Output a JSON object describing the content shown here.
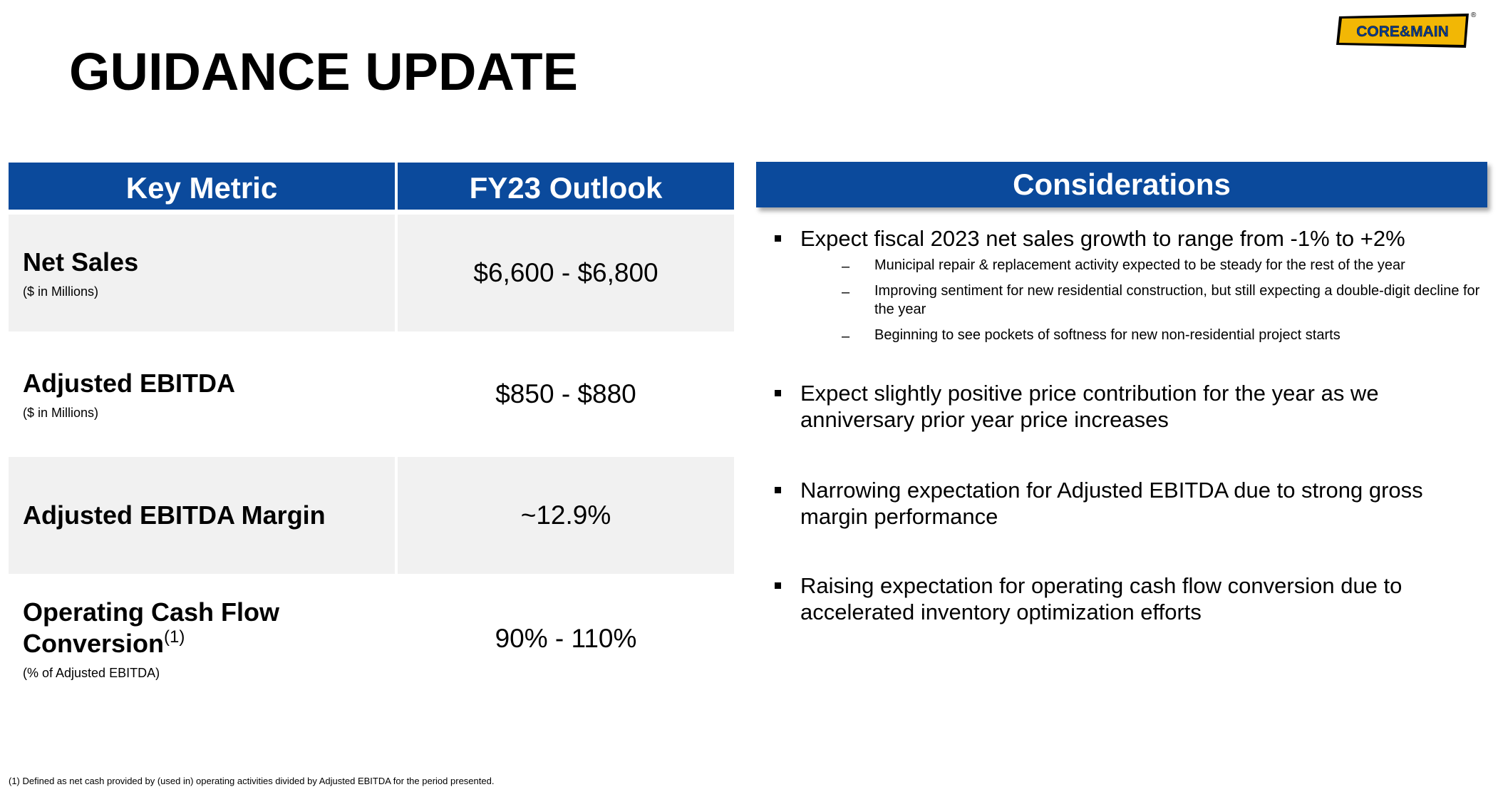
{
  "title": "GUIDANCE UPDATE",
  "logo": {
    "text": "CORE&MAIN",
    "registered": "®",
    "colors": {
      "fill": "#f2b705",
      "text": "#0b3d91",
      "outline": "#000000"
    }
  },
  "table": {
    "headers": [
      "Key Metric",
      "FY23 Outlook"
    ],
    "rows": [
      {
        "name": "Net Sales",
        "sup": "",
        "unit": "($ in Millions)",
        "value": "$6,600 - $6,800"
      },
      {
        "name": "Adjusted EBITDA",
        "sup": "",
        "unit": "($ in Millions)",
        "value": "$850 - $880"
      },
      {
        "name": "Adjusted EBITDA Margin",
        "sup": "",
        "unit": "",
        "value": "~12.9%"
      },
      {
        "name_line1": "Operating Cash Flow",
        "name_line2": "Conversion",
        "sup": "(1)",
        "unit": "(% of Adjusted EBITDA)",
        "value": "90% - 110%"
      }
    ]
  },
  "considerations": {
    "header": "Considerations",
    "bullets": [
      {
        "text": "Expect fiscal 2023 net sales growth to range from -1% to +2%",
        "subs": [
          "Municipal repair & replacement activity expected to be steady for the rest of the year",
          "Improving sentiment for new residential construction, but still expecting a double-digit decline for the year",
          "Beginning to see pockets of softness for new non-residential project starts"
        ]
      },
      {
        "text": "Expect slightly positive price contribution for the year as we anniversary prior year price increases"
      },
      {
        "text": "Narrowing expectation for Adjusted EBITDA due to strong gross margin performance"
      },
      {
        "text": "Raising expectation for operating cash flow conversion due to accelerated inventory optimization efforts"
      }
    ]
  },
  "footnote": "(1) Defined as net cash provided by (used in) operating activities divided by Adjusted EBITDA for the period presented.",
  "colors": {
    "header_blue": "#0b4a9c",
    "row_shade": "#f1f1f1"
  }
}
